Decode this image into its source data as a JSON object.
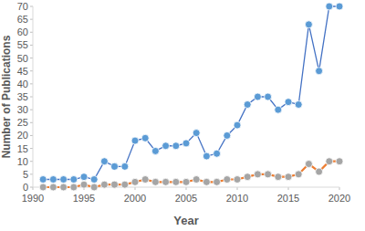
{
  "chart_data": {
    "type": "line",
    "x_label": "Year",
    "y_label": "Number of Publications",
    "x": [
      1991,
      1992,
      1993,
      1994,
      1995,
      1996,
      1997,
      1998,
      1999,
      2000,
      2001,
      2002,
      2003,
      2004,
      2005,
      2006,
      2007,
      2008,
      2009,
      2010,
      2011,
      2012,
      2013,
      2014,
      2015,
      2016,
      2017,
      2018,
      2019,
      2020
    ],
    "series": [
      {
        "color": "#4472c4",
        "marker": "circle",
        "line_style": "solid",
        "values": [
          3,
          3,
          3,
          3,
          4,
          3,
          10,
          8,
          8,
          18,
          19,
          14,
          16,
          16,
          17,
          21,
          12,
          13,
          20,
          24,
          32,
          35,
          35,
          30,
          33,
          32,
          63,
          45,
          70,
          70
        ]
      },
      {
        "color": "#ed7d31",
        "marker": "circle",
        "line_style": "solid",
        "values": [
          0,
          0,
          0,
          0,
          1,
          0,
          1,
          1,
          1,
          2,
          3,
          2,
          2,
          2,
          2,
          3,
          2,
          2,
          3,
          3,
          4,
          5,
          5,
          4,
          4,
          5,
          9,
          6,
          10,
          10
        ]
      }
    ],
    "xlim": [
      1990,
      2020
    ],
    "xticks": [
      1990,
      1995,
      2000,
      2005,
      2010,
      2015,
      2020
    ],
    "ylim": [
      0,
      70
    ],
    "yticks": [
      0,
      5,
      10,
      15,
      20,
      25,
      30,
      35,
      40,
      45,
      50,
      55,
      60,
      65,
      70
    ],
    "grid": false
  }
}
